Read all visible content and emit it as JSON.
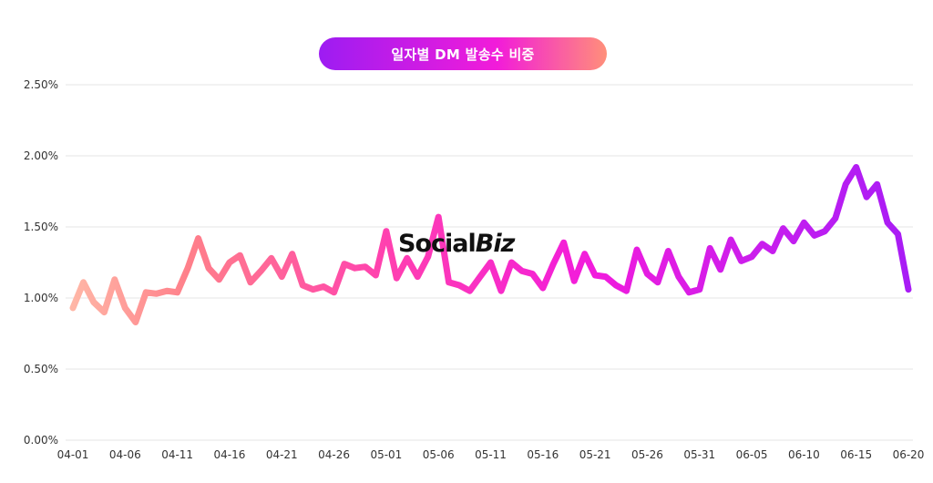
{
  "colors": {
    "title_gradient_start": "#9d1cf2",
    "title_gradient_mid": "#f21cd9",
    "title_gradient_end": "#ff8f7a",
    "line_colors": [
      "#ffb6a6",
      "#ff7f8a",
      "#ff3fb0",
      "#f21cdc",
      "#c21ef0",
      "#a81cf5"
    ],
    "grid": "#e4e4e4"
  },
  "watermark": {
    "brand_a": "Social",
    "brand_b": "Biz"
  },
  "chart_data": {
    "type": "line",
    "title": "일자별 DM 발송수 비중",
    "xlabel": "",
    "ylabel": "",
    "ylim": [
      0,
      2.5
    ],
    "yticks": [
      "0.00%",
      "0.50%",
      "1.00%",
      "1.50%",
      "2.00%",
      "2.50%"
    ],
    "xticks": [
      "04-01",
      "04-06",
      "04-11",
      "04-16",
      "04-21",
      "04-26",
      "05-01",
      "05-06",
      "05-11",
      "05-16",
      "05-21",
      "05-26",
      "05-31",
      "06-05",
      "06-10",
      "06-15",
      "06-20"
    ],
    "grid": true,
    "legend": "none",
    "x": [
      "04-01",
      "04-02",
      "04-03",
      "04-04",
      "04-05",
      "04-06",
      "04-07",
      "04-08",
      "04-09",
      "04-10",
      "04-11",
      "04-12",
      "04-13",
      "04-14",
      "04-15",
      "04-16",
      "04-17",
      "04-18",
      "04-19",
      "04-20",
      "04-21",
      "04-22",
      "04-23",
      "04-24",
      "04-25",
      "04-26",
      "04-27",
      "04-28",
      "04-29",
      "04-30",
      "05-01",
      "05-02",
      "05-03",
      "05-04",
      "05-05",
      "05-06",
      "05-07",
      "05-08",
      "05-09",
      "05-10",
      "05-11",
      "05-12",
      "05-13",
      "05-14",
      "05-15",
      "05-16",
      "05-17",
      "05-18",
      "05-19",
      "05-20",
      "05-21",
      "05-22",
      "05-23",
      "05-24",
      "05-25",
      "05-26",
      "05-27",
      "05-28",
      "05-29",
      "05-30",
      "05-31",
      "06-01",
      "06-02",
      "06-03",
      "06-04",
      "06-05",
      "06-06",
      "06-07",
      "06-08",
      "06-09",
      "06-10",
      "06-11",
      "06-12",
      "06-13",
      "06-14",
      "06-15",
      "06-16",
      "06-17",
      "06-18",
      "06-19",
      "06-20"
    ],
    "series": [
      {
        "values": [
          0.93,
          1.11,
          0.97,
          0.9,
          1.13,
          0.93,
          0.83,
          1.04,
          1.03,
          1.05,
          1.04,
          1.21,
          1.42,
          1.21,
          1.13,
          1.25,
          1.3,
          1.11,
          1.19,
          1.28,
          1.15,
          1.31,
          1.09,
          1.06,
          1.08,
          1.04,
          1.24,
          1.21,
          1.22,
          1.16,
          1.47,
          1.14,
          1.28,
          1.15,
          1.29,
          1.57,
          1.11,
          1.09,
          1.05,
          1.15,
          1.25,
          1.05,
          1.25,
          1.19,
          1.17,
          1.07,
          1.24,
          1.39,
          1.12,
          1.31,
          1.16,
          1.15,
          1.09,
          1.05,
          1.34,
          1.17,
          1.11,
          1.33,
          1.15,
          1.04,
          1.06,
          1.35,
          1.2,
          1.41,
          1.26,
          1.29,
          1.38,
          1.33,
          1.49,
          1.4,
          1.53,
          1.44,
          1.47,
          1.56,
          1.8,
          1.92,
          1.71,
          1.8,
          1.53,
          1.45,
          1.06
        ]
      }
    ]
  }
}
